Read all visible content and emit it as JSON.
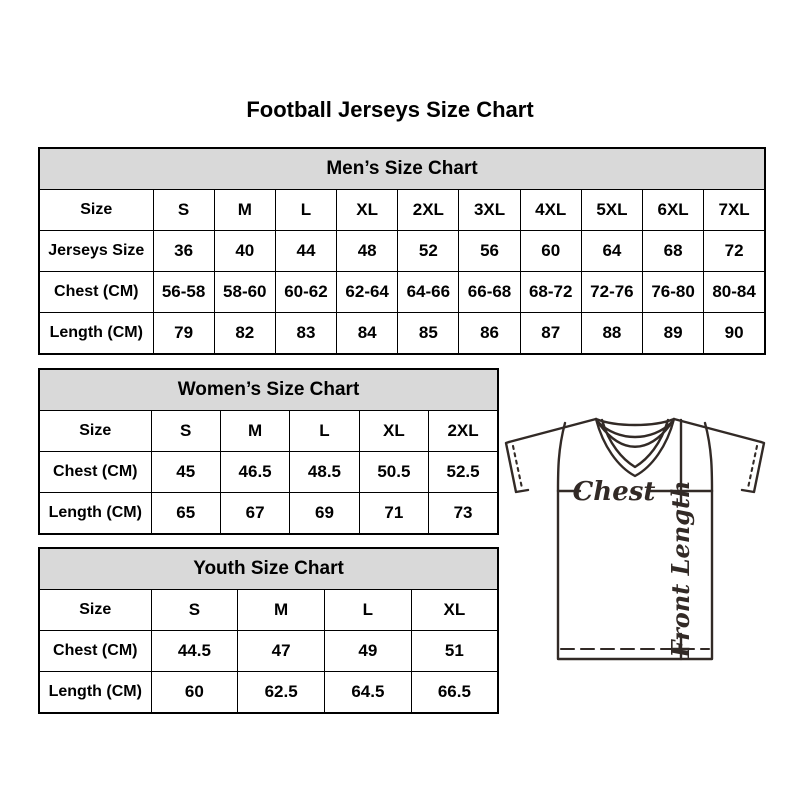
{
  "page_title": "Football Jerseys Size Chart",
  "colors": {
    "table_header_bg": "#d9d9d9",
    "table_border": "#000000",
    "jersey_line": "#322a26"
  },
  "tables": [
    {
      "id": "mens",
      "title": "Men’s Size Chart",
      "rows": [
        [
          "Size",
          "S",
          "M",
          "L",
          "XL",
          "2XL",
          "3XL",
          "4XL",
          "5XL",
          "6XL",
          "7XL"
        ],
        [
          "Jerseys Size",
          "36",
          "40",
          "44",
          "48",
          "52",
          "56",
          "60",
          "64",
          "68",
          "72"
        ],
        [
          "Chest (CM)",
          "56-58",
          "58-60",
          "60-62",
          "62-64",
          "64-66",
          "66-68",
          "68-72",
          "72-76",
          "76-80",
          "80-84"
        ],
        [
          "Length (CM)",
          "79",
          "82",
          "83",
          "84",
          "85",
          "86",
          "87",
          "88",
          "89",
          "90"
        ]
      ]
    },
    {
      "id": "womens",
      "title": "Women’s Size Chart",
      "rows": [
        [
          "Size",
          "S",
          "M",
          "L",
          "XL",
          "2XL"
        ],
        [
          "Chest (CM)",
          "45",
          "46.5",
          "48.5",
          "50.5",
          "52.5"
        ],
        [
          "Length (CM)",
          "65",
          "67",
          "69",
          "71",
          "73"
        ]
      ]
    },
    {
      "id": "youth",
      "title": "Youth Size Chart",
      "rows": [
        [
          "Size",
          "S",
          "M",
          "L",
          "XL"
        ],
        [
          "Chest (CM)",
          "44.5",
          "47",
          "49",
          "51"
        ],
        [
          "Length (CM)",
          "60",
          "62.5",
          "64.5",
          "66.5"
        ]
      ]
    }
  ],
  "jersey_diagram": {
    "chest_label": "Chest",
    "front_length_label": "Front Length"
  }
}
